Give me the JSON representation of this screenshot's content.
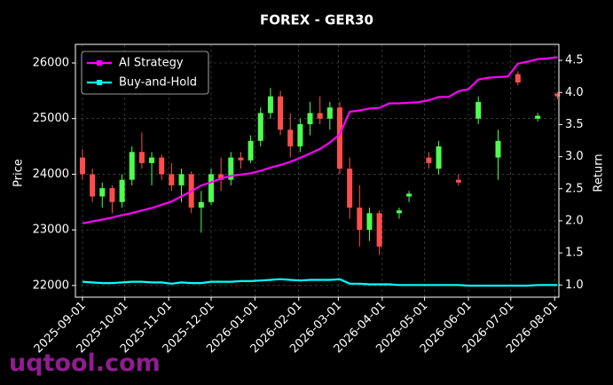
{
  "chart_data": {
    "type": "candlestick",
    "title": "FOREX - GER30",
    "ylabel": "Price",
    "y2label": "Return",
    "watermark": "uqtool.com",
    "grid": true,
    "legend": "upper left",
    "xlim": [
      "2025-08-27",
      "2026-08-04"
    ],
    "xticks": [
      "2025-09-01",
      "2025-10-01",
      "2025-11-01",
      "2025-12-01",
      "2026-01-01",
      "2026-02-01",
      "2026-03-01",
      "2026-04-01",
      "2026-05-01",
      "2026-06-01",
      "2026-07-01",
      "2026-08-01"
    ],
    "ylim": [
      21790,
      26335
    ],
    "yticks": [
      22000,
      23000,
      24000,
      25000,
      26000
    ],
    "y2lim": [
      0.81,
      4.75
    ],
    "y2ticks": [
      {
        "value": 1,
        "label": "1.0"
      },
      1.5,
      {
        "value": 2,
        "label": "2.0"
      },
      2.5,
      {
        "value": 3,
        "label": "3.0"
      },
      3.5,
      {
        "value": 4,
        "label": "4.0"
      },
      4.5
    ],
    "candles": {
      "up_color": "#4dff4d",
      "down_color": "#ff4d4d",
      "x": [
        "2025-09-01",
        "2025-09-08",
        "2025-09-15",
        "2025-09-22",
        "2025-09-29",
        "2025-10-06",
        "2025-10-13",
        "2025-10-20",
        "2025-10-27",
        "2025-11-03",
        "2025-11-10",
        "2025-11-17",
        "2025-11-24",
        "2025-12-01",
        "2025-12-08",
        "2025-12-15",
        "2025-12-22",
        "2025-12-29",
        "2026-01-05",
        "2026-01-12",
        "2026-01-19",
        "2026-01-26",
        "2026-02-02",
        "2026-02-09",
        "2026-02-16",
        "2026-02-23",
        "2026-03-02",
        "2026-03-09",
        "2026-03-16",
        "2026-03-23",
        "2026-03-30",
        "2026-04-13",
        "2026-04-20",
        "2026-05-04",
        "2026-05-11",
        "2026-05-25",
        "2026-06-08",
        "2026-06-22",
        "2026-07-06",
        "2026-07-20",
        "2026-08-03"
      ],
      "open": [
        24300,
        24000,
        23600,
        23750,
        23500,
        23900,
        24400,
        24200,
        24300,
        24000,
        23800,
        24000,
        23400,
        23500,
        24000,
        23900,
        24300,
        24250,
        24600,
        25100,
        25400,
        24800,
        24500,
        24900,
        25100,
        25000,
        25200,
        24100,
        23400,
        23000,
        23300,
        23300,
        23600,
        24300,
        24100,
        23900,
        25000,
        24300,
        25800,
        25000,
        25450
      ],
      "high": [
        24450,
        24100,
        23850,
        23800,
        24000,
        24500,
        24750,
        24400,
        24350,
        24200,
        24100,
        24050,
        23700,
        24100,
        24300,
        24400,
        24400,
        24700,
        25200,
        25550,
        25500,
        25100,
        25000,
        25300,
        25400,
        25300,
        25300,
        24300,
        23800,
        23400,
        23350,
        23400,
        23700,
        24400,
        24600,
        24000,
        25400,
        24800,
        25850,
        25100,
        25480
      ],
      "low": [
        23900,
        23500,
        23400,
        23300,
        23400,
        23800,
        24100,
        23800,
        23900,
        23700,
        23500,
        23300,
        22950,
        23450,
        23700,
        23800,
        24100,
        24200,
        24500,
        25000,
        24700,
        24300,
        24400,
        24700,
        24900,
        24800,
        24000,
        23200,
        22700,
        22800,
        22550,
        23200,
        23500,
        24100,
        24000,
        23800,
        24900,
        23900,
        25600,
        24950,
        25350
      ],
      "close": [
        24000,
        23600,
        23750,
        23500,
        23900,
        24400,
        24200,
        24300,
        24000,
        23800,
        24000,
        23400,
        23500,
        24000,
        23900,
        24300,
        24250,
        24600,
        25100,
        25400,
        24800,
        24500,
        24900,
        25100,
        25000,
        25200,
        24100,
        23400,
        23000,
        23300,
        22700,
        23350,
        23650,
        24200,
        24500,
        23850,
        25300,
        24600,
        25650,
        25050,
        25400
      ]
    },
    "x": [
      "2025-09-01",
      "2025-09-08",
      "2025-09-15",
      "2025-09-22",
      "2025-09-29",
      "2025-10-06",
      "2025-10-13",
      "2025-10-20",
      "2025-10-27",
      "2025-11-03",
      "2025-11-10",
      "2025-11-17",
      "2025-11-24",
      "2025-12-01",
      "2025-12-08",
      "2025-12-15",
      "2025-12-22",
      "2025-12-29",
      "2026-01-05",
      "2026-01-12",
      "2026-01-19",
      "2026-01-26",
      "2026-02-02",
      "2026-02-09",
      "2026-02-16",
      "2026-02-23",
      "2026-03-02",
      "2026-03-09",
      "2026-03-16",
      "2026-03-23",
      "2026-03-30",
      "2026-04-06",
      "2026-04-13",
      "2026-04-20",
      "2026-04-27",
      "2026-05-04",
      "2026-05-11",
      "2026-05-18",
      "2026-05-25",
      "2026-06-01",
      "2026-06-08",
      "2026-06-15",
      "2026-06-22",
      "2026-06-29",
      "2026-07-06",
      "2026-07-13",
      "2026-07-20",
      "2026-07-27",
      "2026-08-03"
    ],
    "series": [
      {
        "name": "AI Strategy",
        "color": "#ff00ff",
        "axis": "y2",
        "values": [
          1.96,
          1.99,
          2.02,
          2.05,
          2.09,
          2.12,
          2.16,
          2.2,
          2.25,
          2.3,
          2.38,
          2.46,
          2.55,
          2.6,
          2.66,
          2.7,
          2.72,
          2.74,
          2.78,
          2.83,
          2.87,
          2.92,
          2.98,
          3.05,
          3.12,
          3.22,
          3.35,
          3.7,
          3.72,
          3.75,
          3.76,
          3.83,
          3.83,
          3.84,
          3.85,
          3.88,
          3.93,
          3.93,
          4.02,
          4.05,
          4.2,
          4.23,
          4.24,
          4.25,
          4.45,
          4.48,
          4.52,
          4.53,
          4.55
        ]
      },
      {
        "name": "Buy-and-Hold",
        "color": "#00ffff",
        "axis": "y2",
        "values": [
          1.05,
          1.04,
          1.03,
          1.03,
          1.04,
          1.05,
          1.05,
          1.04,
          1.04,
          1.02,
          1.04,
          1.03,
          1.03,
          1.05,
          1.05,
          1.05,
          1.06,
          1.06,
          1.07,
          1.08,
          1.09,
          1.08,
          1.07,
          1.08,
          1.08,
          1.08,
          1.09,
          1.02,
          1.02,
          1.01,
          1.01,
          1.01,
          1.0,
          1.0,
          1.0,
          1.0,
          1.0,
          1.0,
          1.0,
          0.99,
          0.99,
          0.99,
          0.99,
          0.99,
          0.99,
          0.99,
          1.0,
          1.0,
          1.0
        ]
      }
    ]
  }
}
